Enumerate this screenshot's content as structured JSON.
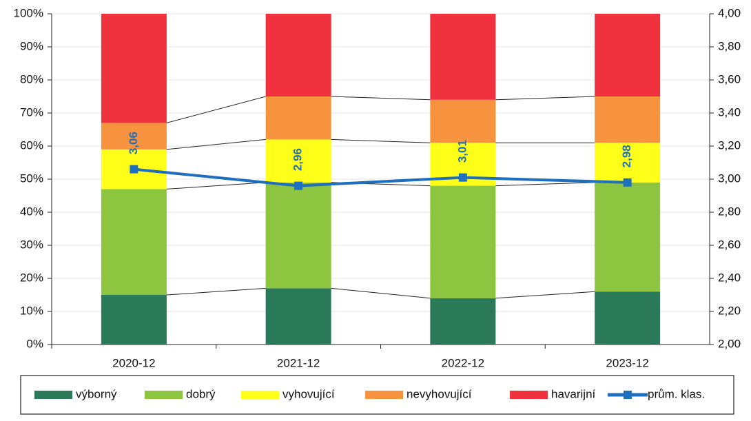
{
  "chart_data": {
    "type": "stacked_bar_line",
    "categories": [
      "2020-12",
      "2021-12",
      "2022-12",
      "2023-12"
    ],
    "series": [
      {
        "name": "výborný",
        "color": "#2a7a5a",
        "values": [
          15,
          17,
          14,
          16
        ]
      },
      {
        "name": "dobrý",
        "color": "#8dc540",
        "values": [
          32,
          32,
          34,
          33
        ]
      },
      {
        "name": "vyhovující",
        "color": "#ffff1a",
        "values": [
          12,
          13,
          13,
          12
        ]
      },
      {
        "name": "nevyhovující",
        "color": "#f7923f",
        "values": [
          8,
          13,
          13,
          14
        ]
      },
      {
        "name": "havarijní",
        "color": "#f0323e",
        "values": [
          33,
          25,
          26,
          25
        ]
      },
      {
        "name": "prům. klas.",
        "color": "#1f6fbf",
        "axis": "y2",
        "type": "line",
        "values": [
          3.06,
          2.96,
          3.01,
          2.98
        ],
        "value_labels": [
          "3,06",
          "2,96",
          "3,01",
          "2,98"
        ]
      }
    ],
    "ylim": [
      0,
      100
    ],
    "yticks": [
      {
        "value": 0,
        "label": "0%"
      },
      {
        "value": 10,
        "label": "10%"
      },
      {
        "value": 20,
        "label": "20%"
      },
      {
        "value": 30,
        "label": "30%"
      },
      {
        "value": 40,
        "label": "40%"
      },
      {
        "value": 50,
        "label": "50%"
      },
      {
        "value": 60,
        "label": "60%"
      },
      {
        "value": 70,
        "label": "70%"
      },
      {
        "value": 80,
        "label": "80%"
      },
      {
        "value": 90,
        "label": "90%"
      },
      {
        "value": 100,
        "label": "100%"
      }
    ],
    "y2lim": [
      2,
      4
    ],
    "y2ticks": [
      {
        "value": 2,
        "label": "2,00"
      },
      {
        "value": 2.2,
        "label": "2,20"
      },
      {
        "value": 2.4,
        "label": "2,40"
      },
      {
        "value": 2.6,
        "label": "2,60"
      },
      {
        "value": 2.8,
        "label": "2,80"
      },
      {
        "value": 3,
        "label": "3,00"
      },
      {
        "value": 3.2,
        "label": "3,20"
      },
      {
        "value": 3.4,
        "label": "3,40"
      },
      {
        "value": 3.6,
        "label": "3,60"
      },
      {
        "value": 3.8,
        "label": "3,80"
      },
      {
        "value": 4,
        "label": "4,00"
      }
    ],
    "grid": true,
    "legend": "bottom"
  }
}
